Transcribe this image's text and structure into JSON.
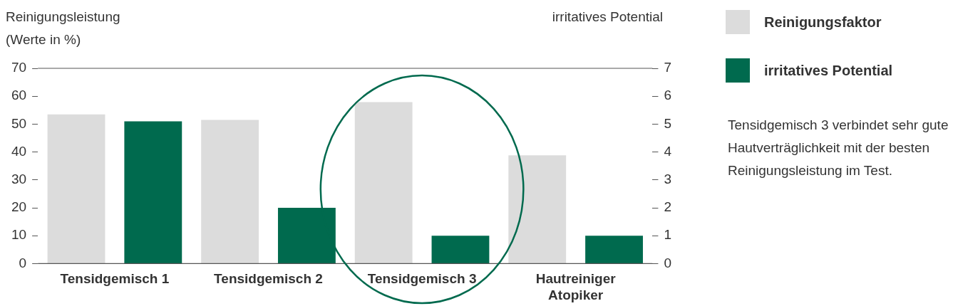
{
  "chart_data": {
    "type": "bar",
    "ylabel": "Reinigungsleistung (Werte in %)",
    "y2label": "irritatives Potential",
    "categories": [
      "Tensidgemisch 1",
      "Tensidgemisch 2",
      "Tensidgemisch 3",
      "Hautreiniger Atopiker"
    ],
    "series": [
      {
        "name": "Reinigungsfaktor",
        "color": "#dcdcdc",
        "values": [
          53.5,
          51.5,
          57.9,
          38.8
        ]
      },
      {
        "name": "irritatives Potential",
        "color": "#006a4e",
        "axis": "y2",
        "values": [
          5.1,
          2.0,
          1.0,
          1.0
        ]
      }
    ],
    "ylim": [
      0,
      70
    ],
    "yticks": [
      0,
      10,
      20,
      30,
      40,
      50,
      60,
      70
    ],
    "y2lim": [
      0,
      7
    ],
    "y2ticks": [
      0,
      1,
      2,
      3,
      4,
      5,
      6,
      7
    ],
    "grid": false,
    "legend": "top right",
    "annotations": [
      "Tensidgemisch 3 verbindet sehr gute Hautverträglichkeit mit der besten Reinigungsleistung im Test."
    ]
  }
}
